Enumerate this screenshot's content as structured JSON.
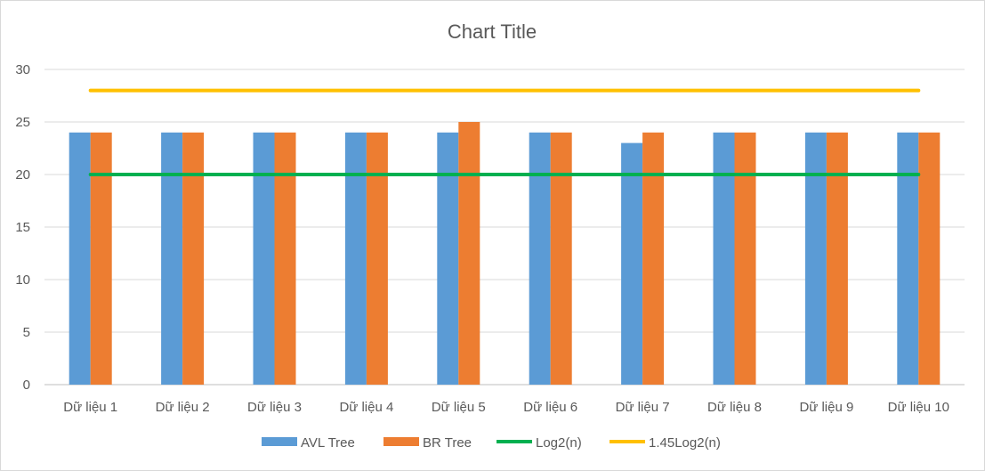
{
  "chart_data": {
    "type": "bar",
    "title": "Chart Title",
    "categories": [
      "Dữ liệu 1",
      "Dữ liệu 2",
      "Dữ liệu 3",
      "Dữ liệu 4",
      "Dữ liệu 5",
      "Dữ liệu 6",
      "Dữ liệu 7",
      "Dữ liệu 8",
      "Dữ liệu 9",
      "Dữ liệu 10"
    ],
    "series": [
      {
        "name": "AVL Tree",
        "kind": "bar",
        "color": "#5b9bd5",
        "values": [
          24,
          24,
          24,
          24,
          24,
          24,
          23,
          24,
          24,
          24
        ]
      },
      {
        "name": "BR Tree",
        "kind": "bar",
        "color": "#ed7d31",
        "values": [
          24,
          24,
          24,
          24,
          25,
          24,
          24,
          24,
          24,
          24
        ]
      },
      {
        "name": "Log2(n)",
        "kind": "line",
        "color": "#00b050",
        "values": [
          20,
          20,
          20,
          20,
          20,
          20,
          20,
          20,
          20,
          20
        ]
      },
      {
        "name": "1.45Log2(n)",
        "kind": "line",
        "color": "#ffc000",
        "values": [
          28,
          28,
          28,
          28,
          28,
          28,
          28,
          28,
          28,
          28
        ]
      }
    ],
    "ylim": [
      0,
      30
    ],
    "yticks": [
      0,
      5,
      10,
      15,
      20,
      25,
      30
    ],
    "grid": true,
    "legend": "bottom"
  }
}
